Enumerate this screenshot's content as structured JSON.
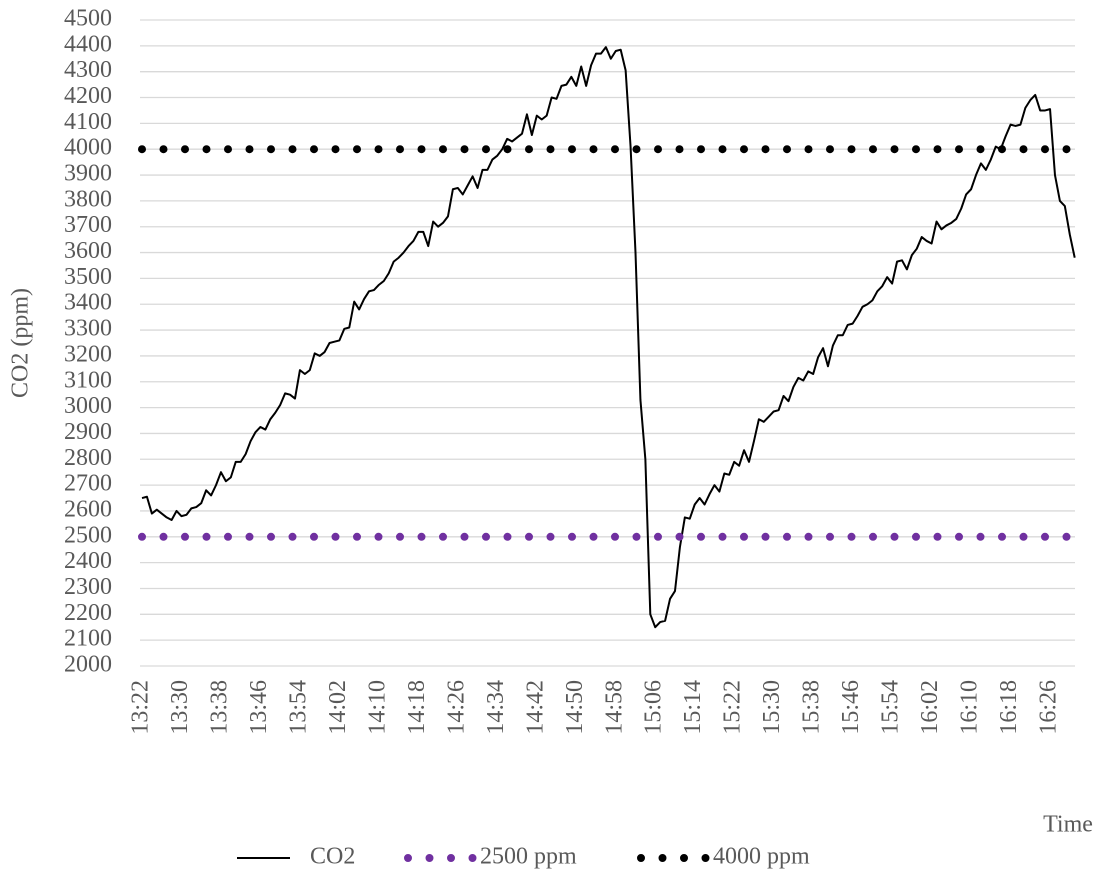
{
  "chart_data": {
    "type": "line",
    "y_label": "CO2 (ppm)",
    "x_label": "Time",
    "categories": [
      "13:22",
      null,
      null,
      null,
      null,
      null,
      null,
      null,
      "13:30",
      null,
      null,
      null,
      null,
      null,
      null,
      null,
      "13:38",
      null,
      null,
      null,
      null,
      null,
      null,
      null,
      "13:46",
      null,
      null,
      null,
      null,
      null,
      null,
      null,
      "13:54",
      null,
      null,
      null,
      null,
      null,
      null,
      null,
      "14:02",
      null,
      null,
      null,
      null,
      null,
      null,
      null,
      "14:10",
      null,
      null,
      null,
      null,
      null,
      null,
      null,
      "14:18",
      null,
      null,
      null,
      null,
      null,
      null,
      null,
      "14:26",
      null,
      null,
      null,
      null,
      null,
      null,
      null,
      "14:34",
      null,
      null,
      null,
      null,
      null,
      null,
      null,
      "14:42",
      null,
      null,
      null,
      null,
      null,
      null,
      null,
      "14:50",
      null,
      null,
      null,
      null,
      null,
      null,
      null,
      "14:58",
      null,
      null,
      null,
      null,
      null,
      null,
      null,
      "15:06",
      null,
      null,
      null,
      null,
      null,
      null,
      null,
      "15:14",
      null,
      null,
      null,
      null,
      null,
      null,
      null,
      "15:22",
      null,
      null,
      null,
      null,
      null,
      null,
      null,
      "15:30",
      null,
      null,
      null,
      null,
      null,
      null,
      null,
      "15:38",
      null,
      null,
      null,
      null,
      null,
      null,
      null,
      "15:46",
      null,
      null,
      null,
      null,
      null,
      null,
      null,
      "15:54",
      null,
      null,
      null,
      null,
      null,
      null,
      null,
      "16:02",
      null,
      null,
      null,
      null,
      null,
      null,
      null,
      "16:10",
      null,
      null,
      null,
      null,
      null,
      null,
      null,
      "16:18",
      null,
      null,
      null,
      null,
      null,
      null,
      null,
      "16:26",
      null,
      null,
      null,
      null,
      null
    ],
    "series": [
      {
        "name": "CO2",
        "color": "#000000",
        "style": "solid",
        "values": [
          2650,
          2655,
          2590,
          2605,
          2590,
          2575,
          2565,
          2600,
          2580,
          2585,
          2610,
          2615,
          2630,
          2680,
          2660,
          2700,
          2750,
          2715,
          2730,
          2790,
          2790,
          2820,
          2870,
          2905,
          2925,
          2915,
          2955,
          2980,
          3010,
          3055,
          3050,
          3035,
          3145,
          3130,
          3145,
          3210,
          3200,
          3215,
          3250,
          3255,
          3260,
          3305,
          3310,
          3410,
          3380,
          3420,
          3450,
          3455,
          3475,
          3490,
          3520,
          3565,
          3580,
          3600,
          3625,
          3645,
          3680,
          3680,
          3625,
          3720,
          3700,
          3715,
          3740,
          3845,
          3850,
          3825,
          3860,
          3895,
          3850,
          3920,
          3920,
          3960,
          3975,
          4000,
          4040,
          4030,
          4045,
          4060,
          4135,
          4055,
          4130,
          4115,
          4130,
          4200,
          4195,
          4245,
          4250,
          4280,
          4245,
          4320,
          4245,
          4325,
          4370,
          4370,
          4395,
          4350,
          4380,
          4385,
          4305,
          4010,
          3600,
          3030,
          2800,
          2200,
          2150,
          2170,
          2175,
          2260,
          2290,
          2460,
          2575,
          2570,
          2625,
          2650,
          2625,
          2665,
          2700,
          2675,
          2745,
          2740,
          2790,
          2775,
          2835,
          2790,
          2870,
          2955,
          2945,
          2965,
          2985,
          2990,
          3045,
          3025,
          3080,
          3115,
          3105,
          3140,
          3130,
          3195,
          3230,
          3160,
          3240,
          3280,
          3280,
          3320,
          3325,
          3355,
          3390,
          3400,
          3415,
          3450,
          3470,
          3505,
          3480,
          3565,
          3570,
          3535,
          3590,
          3615,
          3660,
          3645,
          3635,
          3720,
          3690,
          3705,
          3715,
          3730,
          3770,
          3825,
          3845,
          3900,
          3945,
          3920,
          3960,
          4010,
          4000,
          4050,
          4095,
          4090,
          4095,
          4160,
          4190,
          4210,
          4150,
          4150,
          4155,
          3900,
          3800,
          3780,
          3670,
          3580
        ]
      },
      {
        "name": "2500 ppm",
        "color": "#7030a0",
        "style": "dotted",
        "values": [
          2500,
          2500,
          2500,
          2500,
          2500,
          2500,
          2500,
          2500,
          2500,
          2500,
          2500,
          2500,
          2500,
          2500,
          2500,
          2500,
          2500,
          2500,
          2500,
          2500,
          2500,
          2500,
          2500,
          2500,
          2500,
          2500,
          2500,
          2500,
          2500,
          2500,
          2500,
          2500,
          2500,
          2500,
          2500,
          2500,
          2500,
          2500,
          2500,
          2500,
          2500,
          2500,
          2500,
          2500,
          2500,
          2500,
          2500,
          2500,
          2500,
          2500,
          2500,
          2500,
          2500,
          2500,
          2500,
          2500,
          2500,
          2500,
          2500,
          2500,
          2500,
          2500,
          2500,
          2500,
          2500,
          2500,
          2500,
          2500,
          2500,
          2500,
          2500,
          2500,
          2500,
          2500,
          2500,
          2500,
          2500,
          2500,
          2500,
          2500,
          2500,
          2500,
          2500,
          2500,
          2500,
          2500,
          2500,
          2500,
          2500,
          2500,
          2500,
          2500,
          2500,
          2500,
          2500,
          2500,
          2500,
          2500,
          2500,
          2500,
          2500,
          2500,
          2500,
          2500,
          2500,
          2500,
          2500,
          2500,
          2500,
          2500,
          2500,
          2500,
          2500,
          2500,
          2500,
          2500,
          2500,
          2500,
          2500,
          2500,
          2500,
          2500,
          2500,
          2500,
          2500,
          2500,
          2500,
          2500,
          2500,
          2500,
          2500,
          2500,
          2500,
          2500,
          2500,
          2500,
          2500,
          2500,
          2500,
          2500,
          2500,
          2500,
          2500,
          2500,
          2500,
          2500,
          2500,
          2500,
          2500,
          2500,
          2500,
          2500,
          2500,
          2500,
          2500,
          2500,
          2500,
          2500,
          2500,
          2500,
          2500,
          2500,
          2500,
          2500,
          2500,
          2500,
          2500,
          2500,
          2500,
          2500,
          2500,
          2500,
          2500,
          2500,
          2500,
          2500,
          2500,
          2500,
          2500,
          2500,
          2500,
          2500,
          2500,
          2500,
          2500,
          2500,
          2500,
          2500,
          2500,
          2500
        ]
      },
      {
        "name": "4000 ppm",
        "color": "#000000",
        "style": "dotted",
        "values": [
          4000,
          4000,
          4000,
          4000,
          4000,
          4000,
          4000,
          4000,
          4000,
          4000,
          4000,
          4000,
          4000,
          4000,
          4000,
          4000,
          4000,
          4000,
          4000,
          4000,
          4000,
          4000,
          4000,
          4000,
          4000,
          4000,
          4000,
          4000,
          4000,
          4000,
          4000,
          4000,
          4000,
          4000,
          4000,
          4000,
          4000,
          4000,
          4000,
          4000,
          4000,
          4000,
          4000,
          4000,
          4000,
          4000,
          4000,
          4000,
          4000,
          4000,
          4000,
          4000,
          4000,
          4000,
          4000,
          4000,
          4000,
          4000,
          4000,
          4000,
          4000,
          4000,
          4000,
          4000,
          4000,
          4000,
          4000,
          4000,
          4000,
          4000,
          4000,
          4000,
          4000,
          4000,
          4000,
          4000,
          4000,
          4000,
          4000,
          4000,
          4000,
          4000,
          4000,
          4000,
          4000,
          4000,
          4000,
          4000,
          4000,
          4000,
          4000,
          4000,
          4000,
          4000,
          4000,
          4000,
          4000,
          4000,
          4000,
          4000,
          4000,
          4000,
          4000,
          4000,
          4000,
          4000,
          4000,
          4000,
          4000,
          4000,
          4000,
          4000,
          4000,
          4000,
          4000,
          4000,
          4000,
          4000,
          4000,
          4000,
          4000,
          4000,
          4000,
          4000,
          4000,
          4000,
          4000,
          4000,
          4000,
          4000,
          4000,
          4000,
          4000,
          4000,
          4000,
          4000,
          4000,
          4000,
          4000,
          4000,
          4000,
          4000,
          4000,
          4000,
          4000,
          4000,
          4000,
          4000,
          4000,
          4000,
          4000,
          4000,
          4000,
          4000,
          4000,
          4000,
          4000,
          4000,
          4000,
          4000,
          4000,
          4000,
          4000,
          4000,
          4000,
          4000,
          4000,
          4000,
          4000,
          4000,
          4000,
          4000,
          4000,
          4000,
          4000,
          4000,
          4000,
          4000,
          4000,
          4000,
          4000,
          4000,
          4000,
          4000,
          4000,
          4000,
          4000,
          4000,
          4000,
          4000
        ]
      }
    ],
    "ylim": [
      2000,
      4500
    ],
    "yticks": [
      2000,
      2100,
      2200,
      2300,
      2400,
      2500,
      2600,
      2700,
      2800,
      2900,
      3000,
      3100,
      3200,
      3300,
      3400,
      3500,
      3600,
      3700,
      3800,
      3900,
      4000,
      4100,
      4200,
      4300,
      4400,
      4500
    ],
    "grid": true,
    "legend": "bottom"
  }
}
